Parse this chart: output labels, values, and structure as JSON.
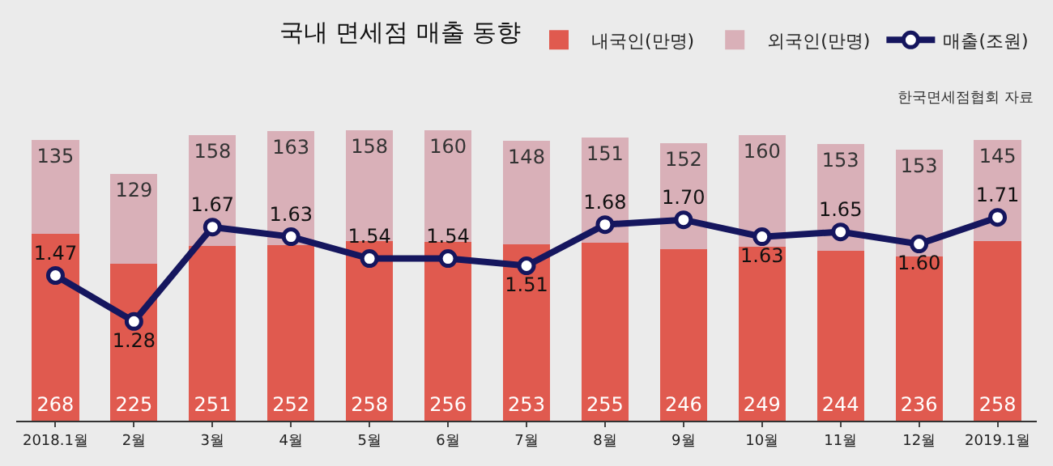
{
  "chart_data": {
    "type": "bar",
    "title": "국내 면세점 매출 동향",
    "stacked": true,
    "data_labels": true,
    "legend": "top right",
    "grid": false,
    "tick_labels": "x",
    "annotations": [
      "한국면세점협회 자료"
    ],
    "categories": [
      "2018.1월",
      "2월",
      "3월",
      "4월",
      "5월",
      "6월",
      "7월",
      "8월",
      "9월",
      "10월",
      "11월",
      "12월",
      "2019.1월"
    ],
    "ylim": [
      0,
      420
    ],
    "y2lim": [
      0.87,
      2.08
    ],
    "series": [
      {
        "name": "내국인(만명)",
        "color": "#e05a4f",
        "values": [
          268,
          225,
          251,
          252,
          258,
          256,
          253,
          255,
          246,
          249,
          244,
          236,
          258
        ]
      },
      {
        "name": "외국인(만명)",
        "color": "#d9b0b8",
        "values": [
          135,
          129,
          158,
          163,
          158,
          160,
          148,
          151,
          152,
          160,
          153,
          153,
          145
        ]
      },
      {
        "name": "매출(조원)",
        "type": "line",
        "axis": "y2",
        "marker": "circle",
        "line_style": "solid",
        "color": "#15165e",
        "values": [
          1.47,
          1.28,
          1.67,
          1.63,
          1.54,
          1.54,
          1.51,
          1.68,
          1.7,
          1.63,
          1.65,
          1.6,
          1.71
        ],
        "value_labels": [
          "1.47",
          "1.28",
          "1.67",
          "1.63",
          "1.54",
          "1.54",
          "1.51",
          "1.68",
          "1.70",
          "1.63",
          "1.65",
          "1.60",
          "1.71"
        ]
      }
    ]
  }
}
